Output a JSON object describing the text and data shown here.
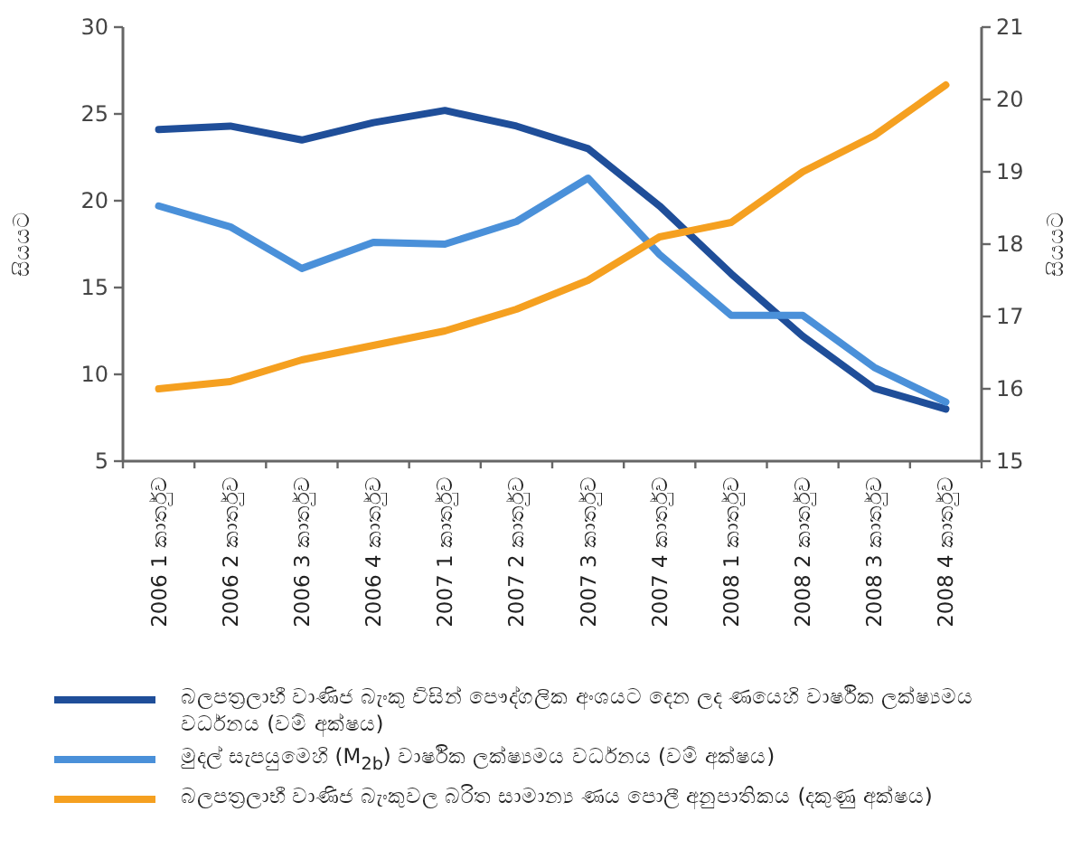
{
  "chart_data": {
    "type": "line",
    "ylabel": "සියයට",
    "y2label": "සියයට",
    "categories": [
      "2006 1 කාර්තුව",
      "2006 2 කාර්තුව",
      "2006 3 කාර්තුව",
      "2006 4 කාර්තුව",
      "2007 1 කාර්තුව",
      "2007 2 කාර්තුව",
      "2007 3 කාර්තුව",
      "2007 4 කාර්තුව",
      "2008 1 කාර්තුව",
      "2008 2 කාර්තුව",
      "2008 3 කාර්තුව",
      "2008 4 කාර්තුව"
    ],
    "ylim": [
      5,
      30
    ],
    "yticks": [
      5,
      10,
      15,
      20,
      25,
      30
    ],
    "y2lim": [
      15,
      21
    ],
    "y2ticks": [
      15,
      16,
      17,
      18,
      19,
      20,
      21
    ],
    "legend": "bottom",
    "series": [
      {
        "name": "බලපත්‍රලාභී වාණිජ බැංකු විසින් පෞද්ගලික අංශයට දෙන ලද ණයෙහි වාර්ෂික ලක්ෂ්‍යමය වර්ධනය (වම් අක්ෂය)",
        "color": "#1f4e99",
        "values": [
          24.1,
          24.3,
          23.5,
          24.5,
          25.2,
          24.3,
          23.0,
          19.7,
          15.8,
          12.2,
          9.2,
          8.0
        ]
      },
      {
        "name": "මුදල් සැපයුමෙහි (M$_{2b}$) වාර්ෂික ලක්ෂ්‍යමය වර්ධනය (වම් අක්ෂය)",
        "color": "#4a90d9",
        "values": [
          19.7,
          18.5,
          16.1,
          17.6,
          17.5,
          18.8,
          21.3,
          16.9,
          13.4,
          13.4,
          10.4,
          8.4
        ]
      },
      {
        "name": "බලපත්‍රලාභී වාණිජ බැංකුවල බරිත සාමාන්‍ය ණය පොලී අනුපාතිකය (දකුණු අක්ෂය)",
        "color": "#f5a020",
        "axis": "y2",
        "values": [
          16.0,
          16.1,
          16.4,
          16.6,
          16.8,
          17.1,
          17.5,
          18.1,
          18.3,
          19.0,
          19.5,
          20.2
        ]
      }
    ]
  }
}
